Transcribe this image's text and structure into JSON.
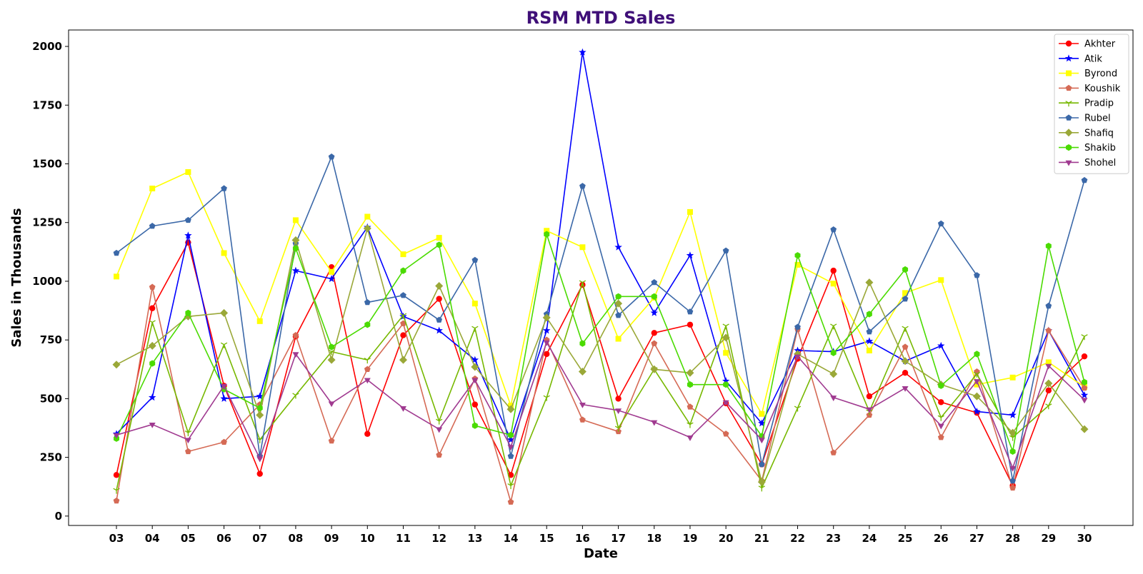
{
  "chart_data": {
    "type": "line",
    "title": "RSM MTD Sales",
    "xlabel": "Date",
    "ylabel": "Sales in Thousands",
    "categories": [
      "03",
      "04",
      "05",
      "06",
      "07",
      "08",
      "09",
      "10",
      "11",
      "12",
      "13",
      "14",
      "15",
      "16",
      "17",
      "18",
      "19",
      "20",
      "21",
      "22",
      "23",
      "24",
      "25",
      "26",
      "27",
      "28",
      "29",
      "30"
    ],
    "ylim": [
      -40,
      2070
    ],
    "yticks": [
      0,
      250,
      500,
      750,
      1000,
      1250,
      1500,
      1750,
      2000
    ],
    "grid": false,
    "legend_position": "top-right",
    "title_color": "#3f0f78",
    "series": [
      {
        "name": "Akhter",
        "color": "#ff0000",
        "marker": "circle",
        "values": [
          175,
          885,
          1165,
          555,
          180,
          765,
          1060,
          350,
          770,
          925,
          475,
          175,
          690,
          985,
          500,
          780,
          815,
          480,
          220,
          670,
          1045,
          510,
          610,
          485,
          440,
          130,
          535,
          680
        ]
      },
      {
        "name": "Atik",
        "color": "#0000ff",
        "marker": "star",
        "values": [
          350,
          505,
          1195,
          500,
          510,
          1045,
          1010,
          1230,
          850,
          790,
          665,
          325,
          790,
          1975,
          1145,
          865,
          1110,
          575,
          395,
          705,
          700,
          745,
          660,
          725,
          445,
          430,
          790,
          515
        ]
      },
      {
        "name": "Byrond",
        "color": "#ffff00",
        "marker": "square",
        "values": [
          1020,
          1395,
          1465,
          1120,
          830,
          1260,
          1040,
          1275,
          1115,
          1185,
          905,
          470,
          1215,
          1145,
          755,
          930,
          1295,
          695,
          435,
          1070,
          990,
          705,
          950,
          1005,
          560,
          590,
          655,
          550
        ]
      },
      {
        "name": "Koushik",
        "color": "#d56a55",
        "marker": "pentagon",
        "values": [
          65,
          975,
          275,
          315,
          475,
          770,
          320,
          625,
          820,
          260,
          585,
          60,
          750,
          410,
          360,
          735,
          465,
          350,
          150,
          795,
          270,
          430,
          720,
          335,
          615,
          120,
          790,
          545
        ]
      },
      {
        "name": "Pradip",
        "color": "#77b800",
        "marker": "tri_down",
        "values": [
          110,
          825,
          355,
          730,
          325,
          515,
          700,
          665,
          855,
          405,
          800,
          130,
          505,
          995,
          375,
          625,
          390,
          810,
          120,
          460,
          810,
          445,
          800,
          420,
          605,
          335,
          470,
          765
        ]
      },
      {
        "name": "Rubel",
        "color": "#3b68a8",
        "marker": "pentagon",
        "values": [
          1120,
          1235,
          1260,
          1395,
          255,
          1160,
          1530,
          910,
          940,
          835,
          1090,
          255,
          860,
          1405,
          855,
          995,
          870,
          1130,
          220,
          805,
          1220,
          785,
          925,
          1245,
          1025,
          150,
          895,
          1430
        ]
      },
      {
        "name": "Shafiq",
        "color": "#9aa838",
        "marker": "diamond",
        "values": [
          645,
          725,
          850,
          865,
          430,
          1175,
          665,
          1225,
          665,
          980,
          635,
          455,
          845,
          615,
          905,
          625,
          610,
          760,
          145,
          690,
          605,
          995,
          660,
          560,
          510,
          355,
          565,
          370
        ]
      },
      {
        "name": "Shakib",
        "color": "#4adb00",
        "marker": "hexagon",
        "values": [
          330,
          650,
          865,
          540,
          460,
          1140,
          720,
          815,
          1045,
          1155,
          385,
          345,
          1200,
          735,
          935,
          935,
          560,
          560,
          340,
          1110,
          695,
          860,
          1050,
          555,
          690,
          275,
          1150,
          570
        ]
      },
      {
        "name": "Shohel",
        "color": "#a03a90",
        "marker": "triangle_down",
        "values": [
          345,
          390,
          325,
          555,
          245,
          690,
          480,
          580,
          460,
          370,
          580,
          295,
          740,
          475,
          450,
          400,
          335,
          485,
          325,
          680,
          505,
          455,
          545,
          385,
          575,
          205,
          640,
          495
        ]
      }
    ]
  }
}
